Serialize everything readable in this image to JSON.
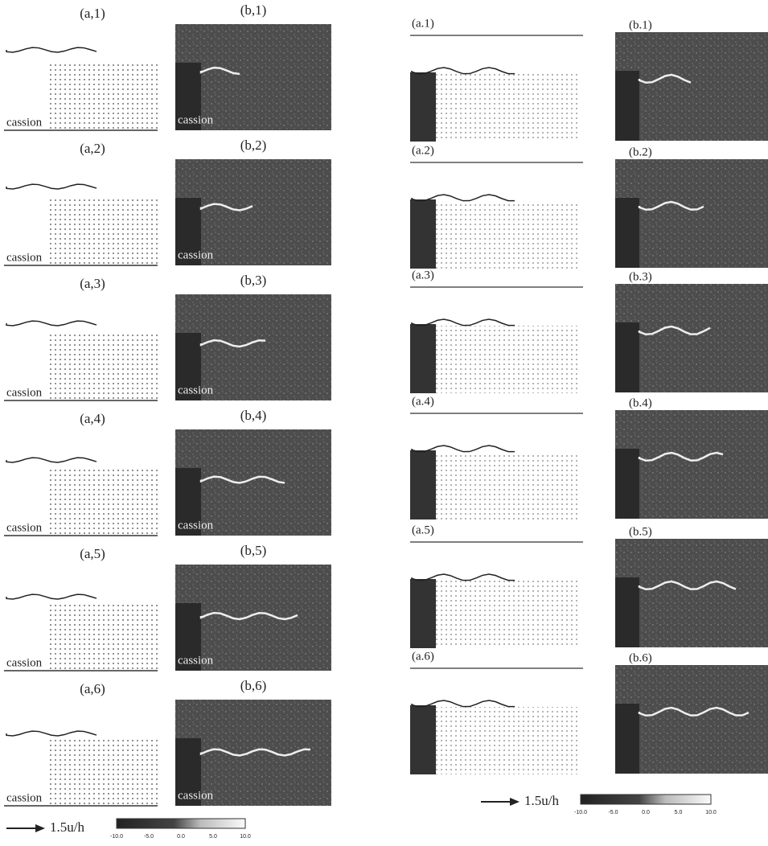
{
  "left": {
    "panels": [
      {
        "a_label": "(a,1)",
        "b_label": "(b,1)",
        "a_caption": "cassion",
        "b_caption": "cassion"
      },
      {
        "a_label": "(a,2)",
        "b_label": "(b,2)",
        "a_caption": "cassion",
        "b_caption": "cassion"
      },
      {
        "a_label": "(a,3)",
        "b_label": "(b,3)",
        "a_caption": "cassion",
        "b_caption": "cassion"
      },
      {
        "a_label": "(a,4)",
        "b_label": "(b,4)",
        "a_caption": "cassion",
        "b_caption": "cassion"
      },
      {
        "a_label": "(a,5)",
        "b_label": "(b,5)",
        "a_caption": "cassion",
        "b_caption": "cassion"
      },
      {
        "a_label": "(a,6)",
        "b_label": "(b,6)",
        "a_caption": "cassion",
        "b_caption": "cassion"
      }
    ],
    "legend": {
      "arrow_label": "1.5u/h",
      "colorbar_ticks": [
        "-10.0",
        "-5.0",
        "0.0",
        "5.0",
        "10.0"
      ]
    }
  },
  "right": {
    "panels": [
      {
        "a_label": "(a.1)",
        "b_label": "(b.1)"
      },
      {
        "a_label": "(a.2)",
        "b_label": "(b.2)"
      },
      {
        "a_label": "(a.3)",
        "b_label": "(b.3)"
      },
      {
        "a_label": "(a.4)",
        "b_label": "(b.4)"
      },
      {
        "a_label": "(a.5)",
        "b_label": "(b.5)"
      },
      {
        "a_label": "(a.6)",
        "b_label": "(b.6)"
      }
    ],
    "legend": {
      "arrow_label": "1.5u/h",
      "colorbar_ticks": [
        "-10.0",
        "-5.0",
        "0.0",
        "5.0",
        "10.0"
      ]
    }
  }
}
